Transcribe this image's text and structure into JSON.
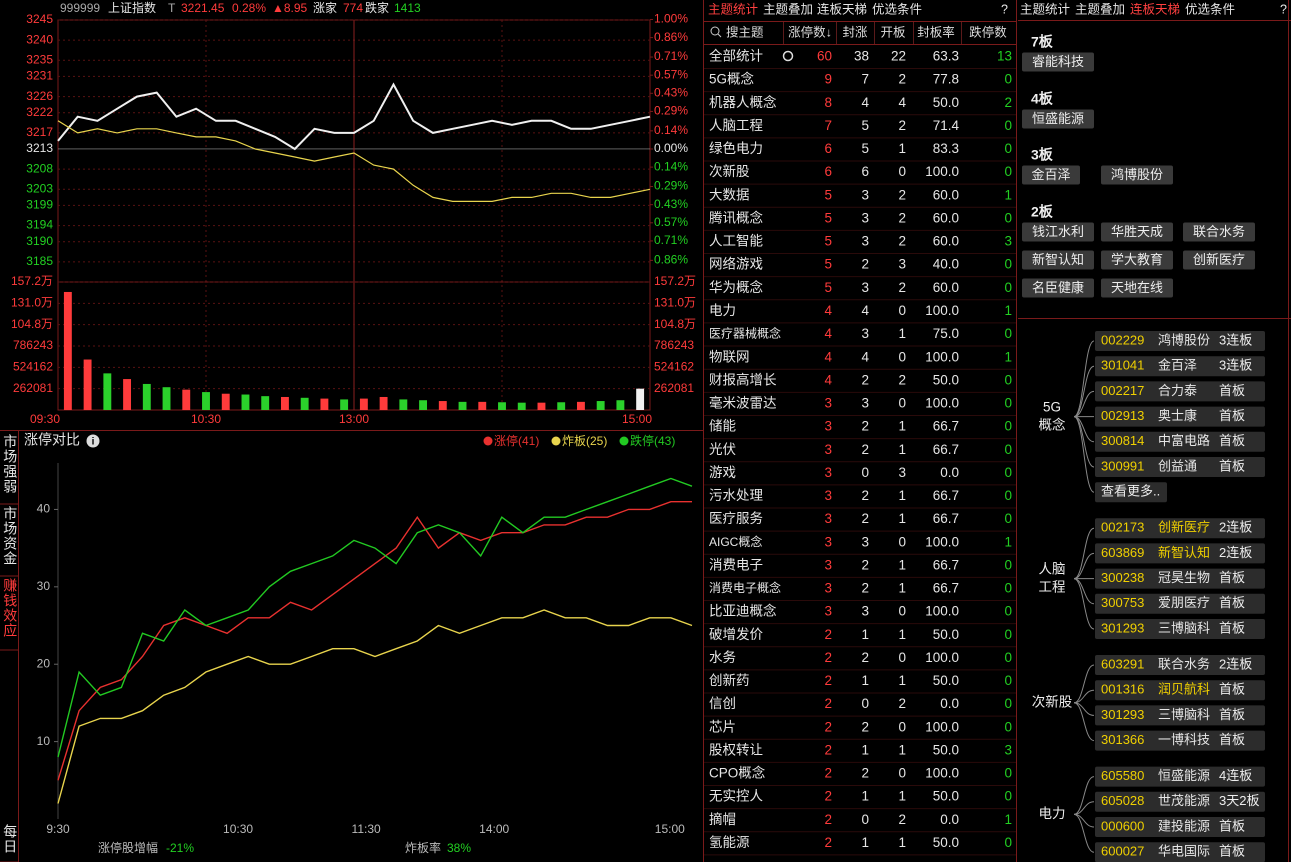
{
  "left_tabs": [
    "市场强弱",
    "市场资金",
    "赚钱效应",
    "每日"
  ],
  "intraday": {
    "code": "999999",
    "name": "上证指数",
    "flag": "T",
    "price": 3221.45,
    "change_pct": "0.28%",
    "change": "▲8.95",
    "up_label": "涨家",
    "up_count": 774,
    "down_label": "跌家",
    "down_count": 1413,
    "ylim": [
      3180,
      3245
    ],
    "yticks": [
      3245,
      3240,
      3235,
      3231,
      3226,
      3222,
      3217,
      3213,
      3208,
      3203,
      3199,
      3194,
      3190,
      3185
    ],
    "pct_ticks": [
      {
        "value": 1,
        "label": "1.00%"
      },
      {
        "value": 0.86,
        "label": "0.86%"
      },
      {
        "value": 0.71,
        "label": "0.71%"
      },
      {
        "value": 0.57,
        "label": "0.57%"
      },
      {
        "value": 0.43,
        "label": "0.43%"
      },
      {
        "value": 0.29,
        "label": "0.29%"
      },
      {
        "value": 0.14,
        "label": "0.14%"
      },
      {
        "value": 0,
        "label": "0.00%"
      },
      {
        "value": -0.14,
        "label": "0.14%"
      },
      {
        "value": -0.29,
        "label": "0.29%"
      },
      {
        "value": -0.43,
        "label": "0.43%"
      },
      {
        "value": -0.57,
        "label": "0.57%"
      },
      {
        "value": -0.71,
        "label": "0.71%"
      },
      {
        "value": -0.86,
        "label": "0.86%"
      }
    ],
    "series": [
      {
        "color": "#f0f0f0",
        "values": [
          3215,
          3221,
          3220,
          3223,
          3226,
          3227,
          3221,
          3223,
          3220,
          3220,
          3218,
          3216,
          3213,
          3218,
          3217,
          3217,
          3220,
          3229,
          3220,
          3217,
          3218,
          3219,
          3220,
          3219,
          3220,
          3220,
          3218,
          3218,
          3219,
          3220,
          3221
        ]
      },
      {
        "color": "#e8d44d",
        "values": [
          3220,
          3217,
          3218,
          3217,
          3218,
          3218,
          3217,
          3216,
          3216,
          3215,
          3213,
          3212,
          3211,
          3210,
          3211,
          3212,
          3209,
          3208,
          3204,
          3201,
          3200,
          3200,
          3200,
          3201,
          3201,
          3202,
          3202,
          3201,
          3201,
          3202,
          3203
        ]
      }
    ],
    "vol_ylim": [
      0,
      1572486
    ],
    "vol_ticks": [
      {
        "value": 1572486,
        "label": "157.2万"
      },
      {
        "value": 1310405,
        "label": "131.0万"
      },
      {
        "value": 1048324,
        "label": "104.8万"
      },
      786243,
      524162,
      262081
    ],
    "volumes": [
      1450000,
      620000,
      450000,
      380000,
      320000,
      280000,
      250000,
      220000,
      200000,
      190000,
      170000,
      160000,
      150000,
      140000,
      130000,
      140000,
      160000,
      130000,
      120000,
      110000,
      100000,
      100000,
      95000,
      90000,
      90000,
      95000,
      100000,
      110000,
      120000,
      262081
    ],
    "volume_colors": [
      "#ff3b3b",
      "#ff3b3b",
      "#2bd12b",
      "#ff3b3b",
      "#2bd12b",
      "#2bd12b",
      "#ff3b3b",
      "#2bd12b",
      "#ff3b3b",
      "#2bd12b",
      "#2bd12b",
      "#ff3b3b",
      "#2bd12b",
      "#ff3b3b",
      "#2bd12b",
      "#ff3b3b",
      "#ff3b3b",
      "#2bd12b",
      "#2bd12b",
      "#ff3b3b",
      "#2bd12b",
      "#ff3b3b",
      "#2bd12b",
      "#2bd12b",
      "#ff3b3b",
      "#2bd12b",
      "#ff3b3b",
      "#2bd12b",
      "#2bd12b",
      "#f0f0f0"
    ],
    "times": [
      "09:30",
      "10:30",
      "13:00",
      "15:00"
    ]
  },
  "limit_compare": {
    "title": "涨停对比",
    "ylim": [
      0,
      46
    ],
    "yticks": [
      10,
      20,
      30,
      40
    ],
    "times": [
      "9:30",
      "10:30",
      "11:30",
      "14:00",
      "15:00"
    ],
    "series": [
      {
        "name": "涨停(41)",
        "color": "#e8312f",
        "values": [
          5,
          14,
          17,
          18,
          21,
          25,
          26,
          25,
          24,
          26,
          26,
          28,
          27,
          29,
          31,
          33,
          35,
          39,
          35,
          37,
          36,
          37,
          37,
          38,
          38,
          39,
          39,
          40,
          40,
          41,
          41
        ]
      },
      {
        "name": "炸板(25)",
        "color": "#e8d44d",
        "values": [
          2,
          12,
          13,
          13,
          14,
          16,
          17,
          19,
          20,
          21,
          20,
          20,
          21,
          22,
          22,
          21,
          22,
          23,
          25,
          24,
          25,
          26,
          26,
          27,
          26,
          26,
          25,
          25,
          26,
          26,
          25
        ]
      },
      {
        "name": "跌停(43)",
        "color": "#22c922",
        "values": [
          8,
          19,
          16,
          17,
          24,
          23,
          27,
          25,
          26,
          27,
          30,
          32,
          33,
          34,
          36,
          35,
          33,
          37,
          38,
          37,
          34,
          39,
          37,
          39,
          39,
          40,
          41,
          42,
          43,
          44,
          43
        ]
      }
    ],
    "increase_label": "涨停股增幅",
    "increase": "-21%",
    "rate_label": "炸板率",
    "rate": "38%"
  },
  "theme_table": {
    "tabs": [
      "主题统计",
      "主题叠加",
      "连板天梯",
      "优选条件",
      "?"
    ],
    "active": 0,
    "columns": [
      "搜主题",
      "涨停数↓",
      "封涨",
      "开板",
      "封板率",
      "跌停数"
    ],
    "rows": [
      [
        "全部统计",
        60,
        38,
        22,
        "63.3",
        13
      ],
      [
        "5G概念",
        9,
        7,
        2,
        "77.8",
        0
      ],
      [
        "机器人概念",
        8,
        4,
        4,
        "50.0",
        2
      ],
      [
        "人脑工程",
        7,
        5,
        2,
        "71.4",
        0
      ],
      [
        "绿色电力",
        6,
        5,
        1,
        "83.3",
        0
      ],
      [
        "次新股",
        6,
        6,
        0,
        "100.0",
        0
      ],
      [
        "大数据",
        5,
        3,
        2,
        "60.0",
        1
      ],
      [
        "腾讯概念",
        5,
        3,
        2,
        "60.0",
        0
      ],
      [
        "人工智能",
        5,
        3,
        2,
        "60.0",
        3
      ],
      [
        "网络游戏",
        5,
        2,
        3,
        "40.0",
        0
      ],
      [
        "华为概念",
        5,
        3,
        2,
        "60.0",
        0
      ],
      [
        "电力",
        4,
        4,
        0,
        "100.0",
        1
      ],
      [
        "医疗器械概念",
        4,
        3,
        1,
        "75.0",
        0
      ],
      [
        "物联网",
        4,
        4,
        0,
        "100.0",
        1
      ],
      [
        "财报高增长",
        4,
        2,
        2,
        "50.0",
        0
      ],
      [
        "毫米波雷达",
        3,
        3,
        0,
        "100.0",
        0
      ],
      [
        "储能",
        3,
        2,
        1,
        "66.7",
        0
      ],
      [
        "光伏",
        3,
        2,
        1,
        "66.7",
        0
      ],
      [
        "游戏",
        3,
        0,
        3,
        "0.0",
        0
      ],
      [
        "污水处理",
        3,
        2,
        1,
        "66.7",
        0
      ],
      [
        "医疗服务",
        3,
        2,
        1,
        "66.7",
        0
      ],
      [
        "AIGC概念",
        3,
        3,
        0,
        "100.0",
        1
      ],
      [
        "消费电子",
        3,
        2,
        1,
        "66.7",
        0
      ],
      [
        "消费电子概念",
        3,
        2,
        1,
        "66.7",
        0
      ],
      [
        "比亚迪概念",
        3,
        3,
        0,
        "100.0",
        0
      ],
      [
        "破增发价",
        2,
        1,
        1,
        "50.0",
        0
      ],
      [
        "水务",
        2,
        2,
        0,
        "100.0",
        0
      ],
      [
        "创新药",
        2,
        1,
        1,
        "50.0",
        0
      ],
      [
        "信创",
        2,
        0,
        2,
        "0.0",
        0
      ],
      [
        "芯片",
        2,
        2,
        0,
        "100.0",
        0
      ],
      [
        "股权转让",
        2,
        1,
        1,
        "50.0",
        3
      ],
      [
        "CPO概念",
        2,
        2,
        0,
        "100.0",
        0
      ],
      [
        "无实控人",
        2,
        1,
        1,
        "50.0",
        0
      ],
      [
        "摘帽",
        2,
        0,
        2,
        "0.0",
        1
      ],
      [
        "氢能源",
        2,
        1,
        1,
        "50.0",
        0
      ]
    ]
  },
  "ladder": {
    "tabs": [
      "主题统计",
      "主题叠加",
      "连板天梯",
      "优选条件",
      "?"
    ],
    "active": 2,
    "levels": [
      {
        "label": "7板",
        "stocks": [
          "睿能科技"
        ]
      },
      {
        "label": "4板",
        "stocks": [
          "恒盛能源"
        ]
      },
      {
        "label": "3板",
        "stocks": [
          "金百泽",
          "鸿博股份"
        ]
      },
      {
        "label": "2板",
        "stocks": [
          "钱江水利",
          "华胜天成",
          "联合水务",
          "新智认知",
          "学大教育",
          "创新医疗",
          "名臣健康",
          "天地在线"
        ]
      }
    ],
    "groups": [
      {
        "label": "5G概念",
        "items": [
          {
            "code": "002229",
            "name": "鸿博股份",
            "tag": "3连板"
          },
          {
            "code": "301041",
            "name": "金百泽",
            "tag": "3连板"
          },
          {
            "code": "002217",
            "name": "合力泰",
            "tag": "首板"
          },
          {
            "code": "002913",
            "name": "奥士康",
            "tag": "首板"
          },
          {
            "code": "300814",
            "name": "中富电路",
            "tag": "首板"
          },
          {
            "code": "300991",
            "name": "创益通",
            "tag": "首板"
          }
        ],
        "more": "查看更多.."
      },
      {
        "label": "人脑工程",
        "items": [
          {
            "code": "002173",
            "name": "创新医疗",
            "tag": "2连板",
            "color": "#f0d000"
          },
          {
            "code": "603869",
            "name": "新智认知",
            "tag": "2连板",
            "color": "#f0d000"
          },
          {
            "code": "300238",
            "name": "冠昊生物",
            "tag": "首板"
          },
          {
            "code": "300753",
            "name": "爱朋医疗",
            "tag": "首板"
          },
          {
            "code": "301293",
            "name": "三博脑科",
            "tag": "首板"
          }
        ]
      },
      {
        "label": "次新股",
        "items": [
          {
            "code": "603291",
            "name": "联合水务",
            "tag": "2连板"
          },
          {
            "code": "001316",
            "name": "润贝航科",
            "tag": "首板",
            "color": "#f0d000"
          },
          {
            "code": "301293",
            "name": "三博脑科",
            "tag": "首板"
          },
          {
            "code": "301366",
            "name": "一博科技",
            "tag": "首板"
          }
        ]
      },
      {
        "label": "电力",
        "items": [
          {
            "code": "605580",
            "name": "恒盛能源",
            "tag": "4连板"
          },
          {
            "code": "605028",
            "name": "世茂能源",
            "tag": "3天2板"
          },
          {
            "code": "000600",
            "name": "建投能源",
            "tag": "首板"
          },
          {
            "code": "600027",
            "name": "华电国际",
            "tag": "首板"
          }
        ]
      }
    ]
  }
}
